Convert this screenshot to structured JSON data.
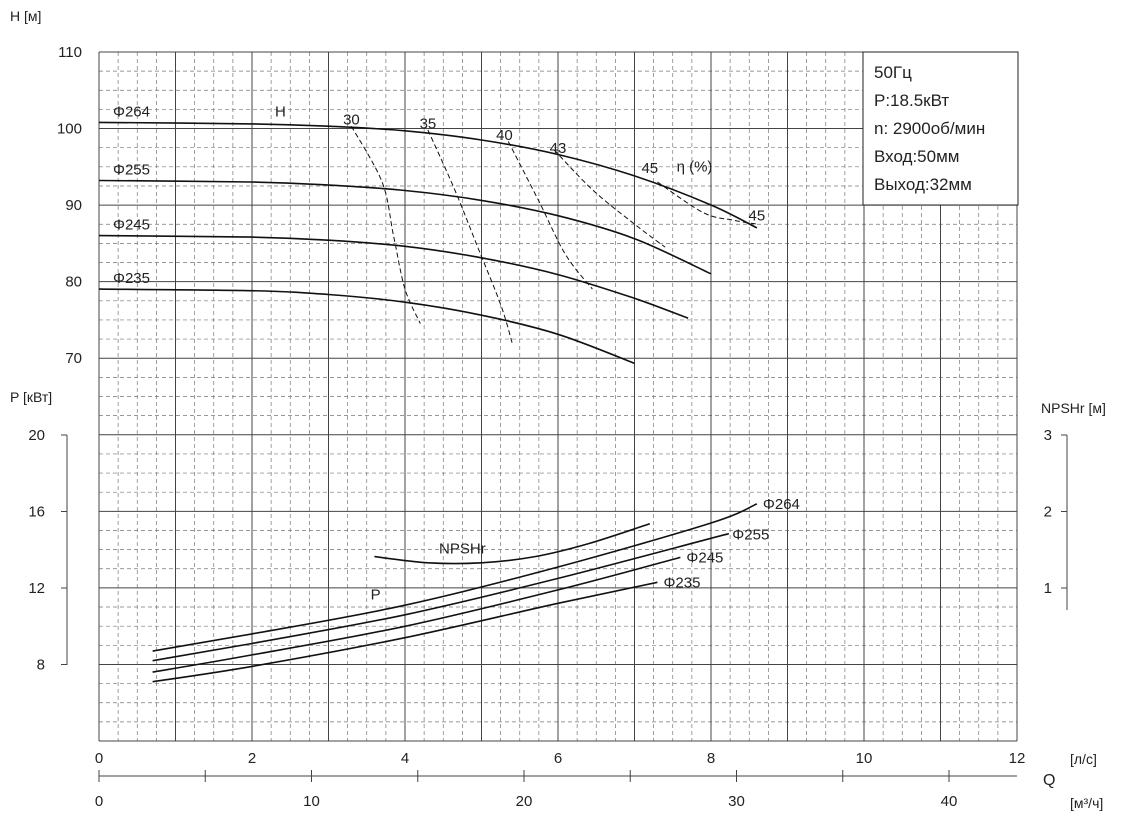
{
  "chart_data": {
    "type": "line",
    "info": {
      "freq": "50Гц",
      "power": "P:18.5кВт",
      "speed": "n: 2900об/мин",
      "inlet": "Вход:50мм",
      "outlet": "Выход:32мм"
    },
    "axes": {
      "h_label": "H [м]",
      "p_label": "P [кВт]",
      "npsh_label": "NPSHr [м]",
      "q_label": "Q",
      "q_ls_unit": "[л/с]",
      "q_m3h_unit": "[м³/ч]",
      "h_ticks": [
        "70",
        "80",
        "90",
        "100",
        "110"
      ],
      "p_ticks": [
        "8",
        "12",
        "16",
        "20"
      ],
      "npsh_ticks": [
        "1",
        "2",
        "3"
      ],
      "q_ls_ticks": [
        "0",
        "2",
        "4",
        "6",
        "8",
        "10",
        "12"
      ],
      "q_m3h_ticks": [
        "0",
        "10",
        "20",
        "30",
        "40"
      ],
      "h_range": [
        60,
        110
      ],
      "p_range": [
        4,
        20
      ],
      "npsh_range": [
        0,
        3
      ],
      "q_range": [
        0,
        12
      ]
    },
    "head_curves": [
      {
        "name": "Φ264",
        "points": [
          [
            0,
            100.8
          ],
          [
            2,
            100.6
          ],
          [
            3,
            100.3
          ],
          [
            4,
            99.7
          ],
          [
            5,
            98.5
          ],
          [
            6,
            96.6
          ],
          [
            7,
            93.8
          ],
          [
            8,
            90.0
          ],
          [
            8.6,
            87.0
          ]
        ]
      },
      {
        "name": "Φ255",
        "points": [
          [
            0,
            93.2
          ],
          [
            2,
            93.0
          ],
          [
            3,
            92.6
          ],
          [
            4,
            91.9
          ],
          [
            5,
            90.6
          ],
          [
            6,
            88.6
          ],
          [
            7,
            85.6
          ],
          [
            8,
            81.0
          ]
        ]
      },
      {
        "name": "Φ245",
        "points": [
          [
            0,
            86.0
          ],
          [
            2,
            85.8
          ],
          [
            3,
            85.4
          ],
          [
            4,
            84.6
          ],
          [
            5,
            83.1
          ],
          [
            6,
            80.9
          ],
          [
            7,
            77.8
          ],
          [
            7.7,
            75.2
          ]
        ]
      },
      {
        "name": "Φ235",
        "points": [
          [
            0,
            79.0
          ],
          [
            2,
            78.8
          ],
          [
            3,
            78.3
          ],
          [
            4,
            77.3
          ],
          [
            5,
            75.6
          ],
          [
            6,
            73.1
          ],
          [
            7,
            69.3
          ]
        ]
      }
    ],
    "efficiency_lines": [
      {
        "label": "30",
        "points": [
          [
            3.3,
            100.3
          ],
          [
            3.7,
            93.0
          ],
          [
            3.85,
            86.0
          ],
          [
            4.0,
            79.0
          ],
          [
            4.2,
            74.5
          ]
        ]
      },
      {
        "label": "35",
        "points": [
          [
            4.3,
            99.8
          ],
          [
            4.65,
            92.0
          ],
          [
            4.95,
            84.5
          ],
          [
            5.25,
            77.0
          ],
          [
            5.4,
            72.0
          ]
        ]
      },
      {
        "label": "40",
        "points": [
          [
            5.35,
            98.3
          ],
          [
            5.75,
            90.5
          ],
          [
            6.1,
            83.5
          ],
          [
            6.45,
            79.0
          ]
        ]
      },
      {
        "label": "43",
        "points": [
          [
            5.95,
            97.2
          ],
          [
            6.45,
            92.0
          ],
          [
            7.0,
            87.5
          ],
          [
            7.4,
            84.5
          ]
        ]
      },
      {
        "label": "45",
        "points": [
          [
            7.3,
            93.0
          ],
          [
            7.9,
            89.0
          ],
          [
            8.3,
            88.0
          ],
          [
            8.6,
            87.5
          ]
        ]
      }
    ],
    "efficiency_labels": [
      {
        "text": "30",
        "at": [
          3.3,
          100.5
        ]
      },
      {
        "text": "35",
        "at": [
          4.3,
          100.0
        ]
      },
      {
        "text": "40",
        "at": [
          5.3,
          98.5
        ]
      },
      {
        "text": "43",
        "at": [
          6.0,
          96.8
        ]
      },
      {
        "text": "45",
        "at": [
          7.2,
          94.2
        ]
      },
      {
        "text": "45",
        "at": [
          8.6,
          88.0
        ]
      }
    ],
    "eta_label": "η (%)",
    "h_curve_label": "H",
    "power_curves": [
      {
        "name": "Φ264",
        "points": [
          [
            0.7,
            8.7
          ],
          [
            2,
            9.6
          ],
          [
            4,
            11.1
          ],
          [
            6,
            13.1
          ],
          [
            8,
            15.4
          ],
          [
            8.6,
            16.4
          ]
        ]
      },
      {
        "name": "Φ255",
        "points": [
          [
            0.7,
            8.2
          ],
          [
            2,
            9.1
          ],
          [
            4,
            10.6
          ],
          [
            6,
            12.5
          ],
          [
            8,
            14.6
          ],
          [
            8.2,
            14.8
          ]
        ]
      },
      {
        "name": "Φ245",
        "points": [
          [
            0.7,
            7.6
          ],
          [
            2,
            8.5
          ],
          [
            4,
            10.0
          ],
          [
            6,
            11.9
          ],
          [
            7.6,
            13.6
          ]
        ]
      },
      {
        "name": "Φ235",
        "points": [
          [
            0.7,
            7.1
          ],
          [
            2,
            7.9
          ],
          [
            4,
            9.4
          ],
          [
            6,
            11.2
          ],
          [
            7.3,
            12.3
          ]
        ]
      }
    ],
    "p_curve_label": "P",
    "npsh_curve": {
      "name": "NPSHr",
      "points": [
        [
          3.6,
          1.41
        ],
        [
          4.3,
          1.33
        ],
        [
          5.0,
          1.33
        ],
        [
          5.7,
          1.41
        ],
        [
          6.4,
          1.58
        ],
        [
          7.2,
          1.84
        ]
      ]
    },
    "grid": true
  }
}
